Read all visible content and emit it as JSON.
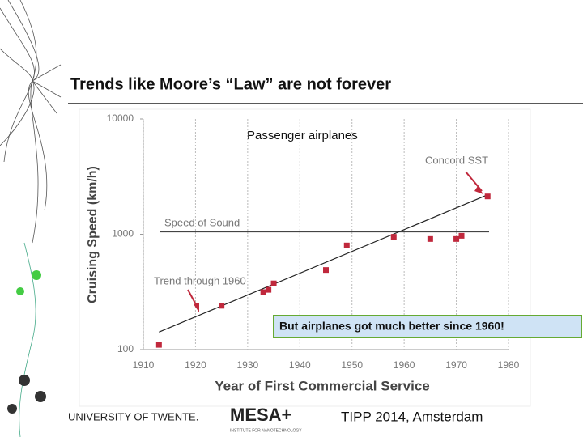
{
  "slide": {
    "title": "Trends like Moore’s “Law” are not forever",
    "university": "UNIVERSITY OF TWENTE.",
    "institute": "MESA+",
    "institute_sub": "INSTITUTE FOR NANOTECHNOLOGY",
    "event": "TIPP 2014, Amsterdam",
    "callout": "But airplanes got much better since 1960!"
  },
  "chart_data": {
    "type": "scatter",
    "title": "Passenger airplanes",
    "x_label": "Year of First Commercial Service",
    "y_label": "Cruising Speed (km/h)",
    "yscale": "log",
    "grid": true,
    "color": "#c0283c",
    "x": [
      1913,
      1925,
      1933,
      1934,
      1935,
      1945,
      1949,
      1958,
      1965,
      1970,
      1971,
      1976
    ],
    "values": [
      110,
      240,
      315,
      330,
      375,
      490,
      800,
      950,
      910,
      910,
      970,
      2130
    ],
    "xlim": [
      1910,
      1980
    ],
    "xticks": [
      1910,
      1920,
      1930,
      1940,
      1950,
      1960,
      1970,
      1980
    ],
    "ylim": [
      100,
      10000
    ],
    "yticks": [
      100,
      1000,
      10000
    ],
    "trend": {
      "label": "Trend through 1960",
      "x": [
        1913,
        1976
      ],
      "values": [
        142,
        2200
      ]
    },
    "reference_lines": [
      {
        "label": "Speed of Sound",
        "value": 1050
      }
    ],
    "annotations": [
      {
        "text": "Concord SST"
      }
    ]
  }
}
